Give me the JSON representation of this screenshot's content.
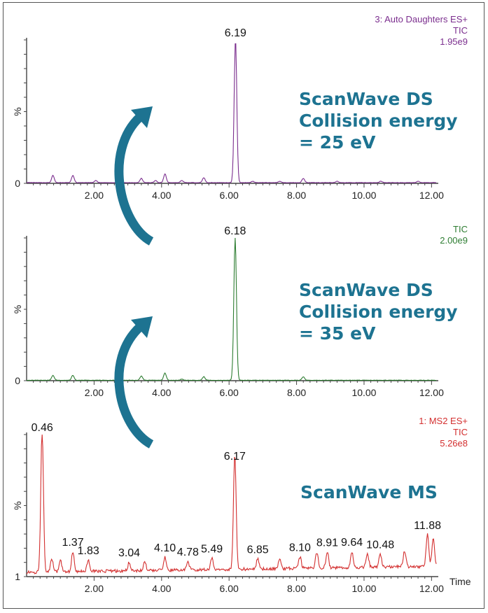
{
  "accent_color": "#1d7391",
  "chart_data": [
    {
      "type": "line",
      "color": "#7b2e8e",
      "header": [
        "3: Auto Daughters ES+",
        "TIC",
        "1.95e9"
      ],
      "y_min_label": "0",
      "y_label": "%",
      "x_label": "",
      "xlim": [
        0,
        12.2
      ],
      "ylim": [
        0,
        100
      ],
      "x_ticks": [
        "2.00",
        "4.00",
        "6.00",
        "8.00",
        "10.00",
        "12.00"
      ],
      "baseline": 0.5,
      "peaks": [
        {
          "x": 0.78,
          "y": 5
        },
        {
          "x": 1.37,
          "y": 5
        },
        {
          "x": 2.05,
          "y": 1.5
        },
        {
          "x": 3.4,
          "y": 3
        },
        {
          "x": 3.82,
          "y": 1.5
        },
        {
          "x": 4.1,
          "y": 6
        },
        {
          "x": 4.6,
          "y": 1.5
        },
        {
          "x": 5.25,
          "y": 3.5
        },
        {
          "x": 6.19,
          "y": 100
        },
        {
          "x": 6.7,
          "y": 1
        },
        {
          "x": 7.5,
          "y": 1
        },
        {
          "x": 8.2,
          "y": 3
        },
        {
          "x": 9.2,
          "y": 1
        },
        {
          "x": 10.5,
          "y": 1
        },
        {
          "x": 11.6,
          "y": 1
        }
      ],
      "labels": [
        {
          "x": 6.19,
          "y": 100,
          "text": "6.19"
        }
      ],
      "annotation": [
        "ScanWave DS",
        "Collision energy",
        "= 25 eV"
      ]
    },
    {
      "type": "line",
      "color": "#2e7d32",
      "header": [
        "TIC",
        "2.00e9"
      ],
      "y_min_label": "0",
      "y_label": "%",
      "x_label": "",
      "xlim": [
        0,
        12.2
      ],
      "ylim": [
        0,
        100
      ],
      "x_ticks": [
        "2.00",
        "4.00",
        "6.00",
        "8.00",
        "10.00",
        "12.00"
      ],
      "baseline": 0.3,
      "peaks": [
        {
          "x": 0.78,
          "y": 3.5
        },
        {
          "x": 1.37,
          "y": 3.5
        },
        {
          "x": 3.4,
          "y": 3
        },
        {
          "x": 4.1,
          "y": 5
        },
        {
          "x": 4.6,
          "y": 0.8
        },
        {
          "x": 5.25,
          "y": 2.5
        },
        {
          "x": 6.18,
          "y": 100
        },
        {
          "x": 8.2,
          "y": 2.5
        }
      ],
      "labels": [
        {
          "x": 6.18,
          "y": 100,
          "text": "6.18"
        }
      ],
      "annotation": [
        "ScanWave DS",
        "Collision energy",
        "= 35 eV"
      ]
    },
    {
      "type": "line",
      "color": "#d32f2f",
      "header": [
        "1: MS2 ES+",
        "TIC",
        "5.26e8"
      ],
      "y_min_label": "1",
      "y_label": "%",
      "x_label": "Time",
      "xlim": [
        0,
        12.2
      ],
      "ylim": [
        1,
        100
      ],
      "x_ticks": [
        "2.00",
        "4.00",
        "6.00",
        "8.00",
        "10.00",
        "12.00"
      ],
      "baseline": 4,
      "peaks": [
        {
          "x": 0.46,
          "y": 100
        },
        {
          "x": 0.75,
          "y": 9
        },
        {
          "x": 1.0,
          "y": 8
        },
        {
          "x": 1.37,
          "y": 14
        },
        {
          "x": 1.83,
          "y": 8
        },
        {
          "x": 3.04,
          "y": 6
        },
        {
          "x": 3.5,
          "y": 6
        },
        {
          "x": 4.1,
          "y": 9
        },
        {
          "x": 4.78,
          "y": 6
        },
        {
          "x": 5.49,
          "y": 8
        },
        {
          "x": 6.17,
          "y": 80
        },
        {
          "x": 6.85,
          "y": 7
        },
        {
          "x": 7.5,
          "y": 7
        },
        {
          "x": 8.1,
          "y": 8
        },
        {
          "x": 8.6,
          "y": 11
        },
        {
          "x": 8.91,
          "y": 11
        },
        {
          "x": 9.64,
          "y": 11
        },
        {
          "x": 10.1,
          "y": 10
        },
        {
          "x": 10.48,
          "y": 9
        },
        {
          "x": 11.2,
          "y": 11
        },
        {
          "x": 11.88,
          "y": 22
        },
        {
          "x": 12.05,
          "y": 19
        }
      ],
      "labels": [
        {
          "x": 0.46,
          "y": 100,
          "text": "0.46"
        },
        {
          "x": 1.37,
          "y": 14,
          "text": "1.37"
        },
        {
          "x": 1.83,
          "y": 8,
          "text": "1.83"
        },
        {
          "x": 3.04,
          "y": 6,
          "text": "3.04"
        },
        {
          "x": 4.1,
          "y": 9,
          "text": "4.10"
        },
        {
          "x": 4.78,
          "y": 6,
          "text": "4.78"
        },
        {
          "x": 5.49,
          "y": 8,
          "text": "5.49"
        },
        {
          "x": 6.17,
          "y": 80,
          "text": "6.17"
        },
        {
          "x": 6.85,
          "y": 7,
          "text": "6.85"
        },
        {
          "x": 8.1,
          "y": 8,
          "text": "8.10"
        },
        {
          "x": 8.91,
          "y": 11,
          "text": "8.91"
        },
        {
          "x": 9.64,
          "y": 11,
          "text": "9.64"
        },
        {
          "x": 10.48,
          "y": 9,
          "text": "10.48"
        },
        {
          "x": 11.88,
          "y": 22,
          "text": "11.88"
        }
      ],
      "annotation": [
        "ScanWave MS"
      ]
    }
  ]
}
